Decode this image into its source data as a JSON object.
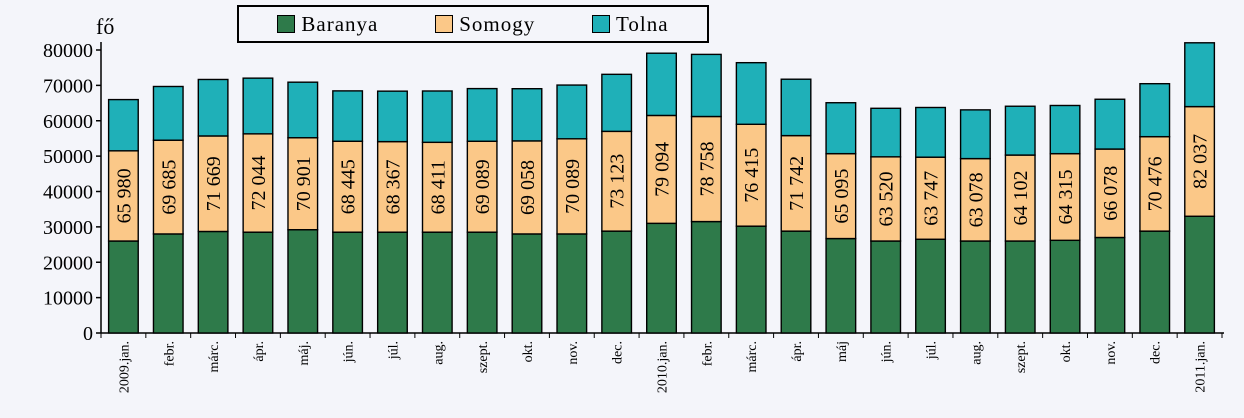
{
  "chart_data": {
    "type": "bar",
    "stacked": true,
    "ylabel": "fő",
    "ylim": [
      0,
      80000
    ],
    "yticks": [
      0,
      10000,
      20000,
      30000,
      40000,
      50000,
      60000,
      70000,
      80000
    ],
    "categories": [
      "2009.jan.",
      "febr.",
      "márc.",
      "ápr.",
      "máj.",
      "jún.",
      "júl.",
      "aug.",
      "szept.",
      "okt.",
      "nov.",
      "dec.",
      "2010.jan.",
      "febr.",
      "márc.",
      "ápr.",
      "máj",
      "jún.",
      "júl.",
      "aug.",
      "szept.",
      "okt.",
      "nov.",
      "dec.",
      "2011.jan."
    ],
    "series": [
      {
        "name": "Baranya",
        "color": "#2e7a4a",
        "values": [
          26000,
          28000,
          28700,
          28500,
          29200,
          28500,
          28500,
          28500,
          28500,
          28000,
          28000,
          28800,
          31000,
          31500,
          30200,
          28800,
          26700,
          26000,
          26500,
          26000,
          26000,
          26200,
          27000,
          28800,
          33000
        ]
      },
      {
        "name": "Somogy",
        "color": "#fbc888",
        "values": [
          25500,
          26500,
          27000,
          27800,
          26000,
          25700,
          25600,
          25400,
          25700,
          26300,
          26900,
          28200,
          30500,
          29700,
          28800,
          27000,
          24000,
          23800,
          23200,
          23300,
          24300,
          24500,
          25000,
          26700,
          31000
        ]
      },
      {
        "name": "Tolna",
        "color": "#1fb0b8",
        "values": [
          14480,
          15185,
          15969,
          15744,
          15701,
          14245,
          14267,
          14511,
          14889,
          14758,
          15189,
          16123,
          17594,
          17558,
          17415,
          15942,
          14395,
          13720,
          14047,
          13778,
          13802,
          13615,
          14078,
          14976,
          18037
        ]
      }
    ],
    "totals": [
      "65 980",
      "69 685",
      "71 669",
      "72 044",
      "70 901",
      "68 445",
      "68 367",
      "68 411",
      "69 089",
      "69 058",
      "70 089",
      "73 123",
      "79 094",
      "78 758",
      "76 415",
      "71 742",
      "65 095",
      "63 520",
      "63 747",
      "63 078",
      "64 102",
      "64 315",
      "66 078",
      "70 476",
      "82 037"
    ],
    "legend": "top-center",
    "grid": false
  }
}
